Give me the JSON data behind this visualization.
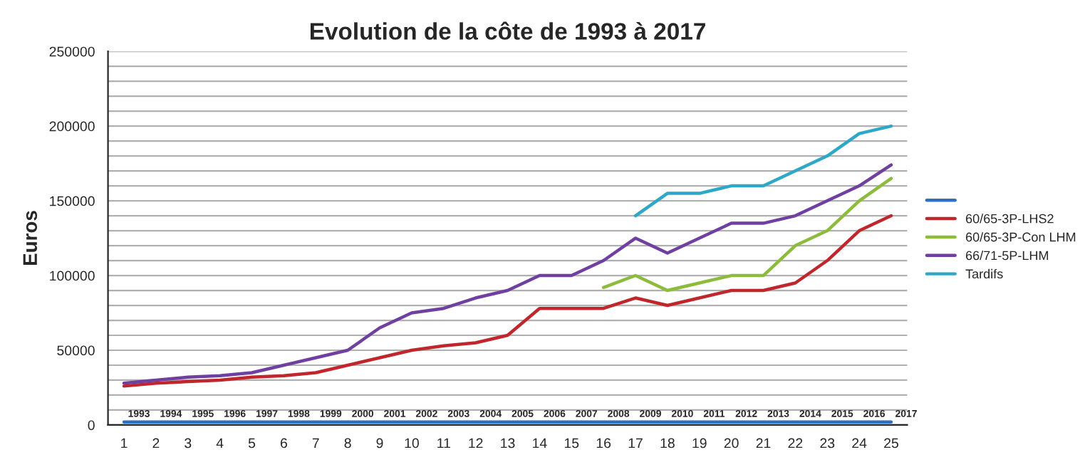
{
  "chart_data": {
    "type": "line",
    "title": "Evolution de la côte de 1993 à 2017",
    "ylabel": "Euros",
    "categories": [
      "1",
      "2",
      "3",
      "4",
      "5",
      "6",
      "7",
      "8",
      "9",
      "10",
      "11",
      "12",
      "13",
      "14",
      "15",
      "16",
      "17",
      "18",
      "19",
      "20",
      "21",
      "22",
      "23",
      "24",
      "25"
    ],
    "ylim": [
      0,
      250000
    ],
    "yticks": [
      0,
      {
        "value": 10000,
        "label": null
      },
      {
        "value": 20000,
        "label": null
      },
      {
        "value": 30000,
        "label": null
      },
      {
        "value": 40000,
        "label": null
      },
      50000,
      {
        "value": 60000,
        "label": null
      },
      {
        "value": 70000,
        "label": null
      },
      {
        "value": 80000,
        "label": null
      },
      {
        "value": 90000,
        "label": null
      },
      100000,
      {
        "value": 110000,
        "label": null
      },
      {
        "value": 120000,
        "label": null
      },
      {
        "value": 130000,
        "label": null
      },
      {
        "value": 140000,
        "label": null
      },
      150000,
      {
        "value": 160000,
        "label": null
      },
      {
        "value": 170000,
        "label": null
      },
      {
        "value": 180000,
        "label": null
      },
      {
        "value": 190000,
        "label": null
      },
      200000,
      {
        "value": 210000,
        "label": null
      },
      {
        "value": 220000,
        "label": null
      },
      {
        "value": 230000,
        "label": null
      },
      {
        "value": 240000,
        "label": null
      },
      250000
    ],
    "grid": "y",
    "legend": "right",
    "marker": "none",
    "line_style": "solid",
    "series": [
      {
        "color": "#2e6fc4",
        "values": [
          1993,
          1994,
          1995,
          1996,
          1997,
          1998,
          1999,
          2000,
          2001,
          2002,
          2003,
          2004,
          2005,
          2006,
          2007,
          2008,
          2009,
          2010,
          2011,
          2012,
          2013,
          2014,
          2015,
          2016,
          2017
        ],
        "value_labels": [
          "1993",
          "1994",
          "1995",
          "1996",
          "1997",
          "1998",
          "1999",
          "2000",
          "2001",
          "2002",
          "2003",
          "2004",
          "2005",
          "2006",
          "2007",
          "2008",
          "2009",
          "2010",
          "2011",
          "2012",
          "2013",
          "2014",
          "2015",
          "2016",
          "2017"
        ]
      },
      {
        "name": "60/65-3P-LHS2",
        "color": "#c0272d",
        "values": [
          26000,
          28000,
          29000,
          30000,
          32000,
          33000,
          35000,
          40000,
          45000,
          50000,
          53000,
          55000,
          60000,
          78000,
          78000,
          78000,
          85000,
          80000,
          85000,
          90000,
          90000,
          95000,
          110000,
          130000,
          140000
        ]
      },
      {
        "name": "60/65-3P-Con LHM",
        "color": "#8dbb3c",
        "values": [
          null,
          null,
          null,
          null,
          null,
          null,
          null,
          null,
          null,
          null,
          null,
          null,
          null,
          null,
          null,
          92000,
          100000,
          90000,
          95000,
          100000,
          100000,
          120000,
          130000,
          150000,
          165000
        ]
      },
      {
        "name": "66/71-5P-LHM",
        "color": "#7040a0",
        "values": [
          28000,
          30000,
          32000,
          33000,
          35000,
          40000,
          45000,
          50000,
          65000,
          75000,
          78000,
          85000,
          90000,
          100000,
          100000,
          110000,
          125000,
          115000,
          125000,
          135000,
          135000,
          140000,
          150000,
          160000,
          174000
        ]
      },
      {
        "name": "Tardifs",
        "color": "#2fa8c8",
        "values": [
          null,
          null,
          null,
          null,
          null,
          null,
          null,
          null,
          null,
          null,
          null,
          null,
          null,
          null,
          null,
          null,
          140000,
          155000,
          155000,
          160000,
          160000,
          170000,
          180000,
          195000,
          200000
        ]
      }
    ]
  }
}
